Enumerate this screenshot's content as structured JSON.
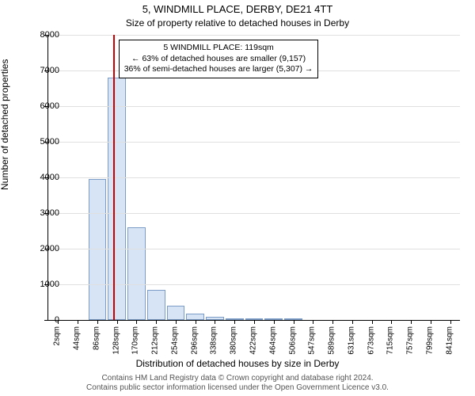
{
  "chart": {
    "type": "histogram",
    "title": "5, WINDMILL PLACE, DERBY, DE21 4TT",
    "subtitle": "Size of property relative to detached houses in Derby",
    "ylabel": "Number of detached properties",
    "xlabel": "Distribution of detached houses by size in Derby",
    "background_color": "#ffffff",
    "grid_color": "#e0e0e0",
    "bar_fill": "#d6e4f5",
    "bar_border": "#7a9cc6",
    "marker_color": "#cc0000",
    "title_fontsize": 13,
    "subtitle_fontsize": 12,
    "label_fontsize": 12,
    "tick_fontsize": 11,
    "ylim": [
      0,
      8000
    ],
    "ytick_step": 1000,
    "yticks": [
      0,
      1000,
      2000,
      3000,
      4000,
      5000,
      6000,
      7000,
      8000
    ],
    "xtick_categories": [
      "2sqm",
      "44sqm",
      "86sqm",
      "128sqm",
      "170sqm",
      "212sqm",
      "254sqm",
      "296sqm",
      "338sqm",
      "380sqm",
      "422sqm",
      "464sqm",
      "506sqm",
      "547sqm",
      "589sqm",
      "631sqm",
      "673sqm",
      "715sqm",
      "757sqm",
      "799sqm",
      "841sqm"
    ],
    "values": [
      0,
      0,
      3950,
      6800,
      2600,
      850,
      400,
      180,
      90,
      40,
      30,
      20,
      15,
      10,
      5,
      5,
      5,
      5,
      5,
      5,
      5
    ],
    "marker_x_index": 2.8,
    "annotation": {
      "line1": "5 WINDMILL PLACE: 119sqm",
      "line2": "← 63% of detached houses are smaller (9,157)",
      "line3": "36% of semi-detached houses are larger (5,307) →"
    }
  },
  "attribution": {
    "line1": "Contains HM Land Registry data © Crown copyright and database right 2024.",
    "line2": "Contains public sector information licensed under the Open Government Licence v3.0."
  }
}
